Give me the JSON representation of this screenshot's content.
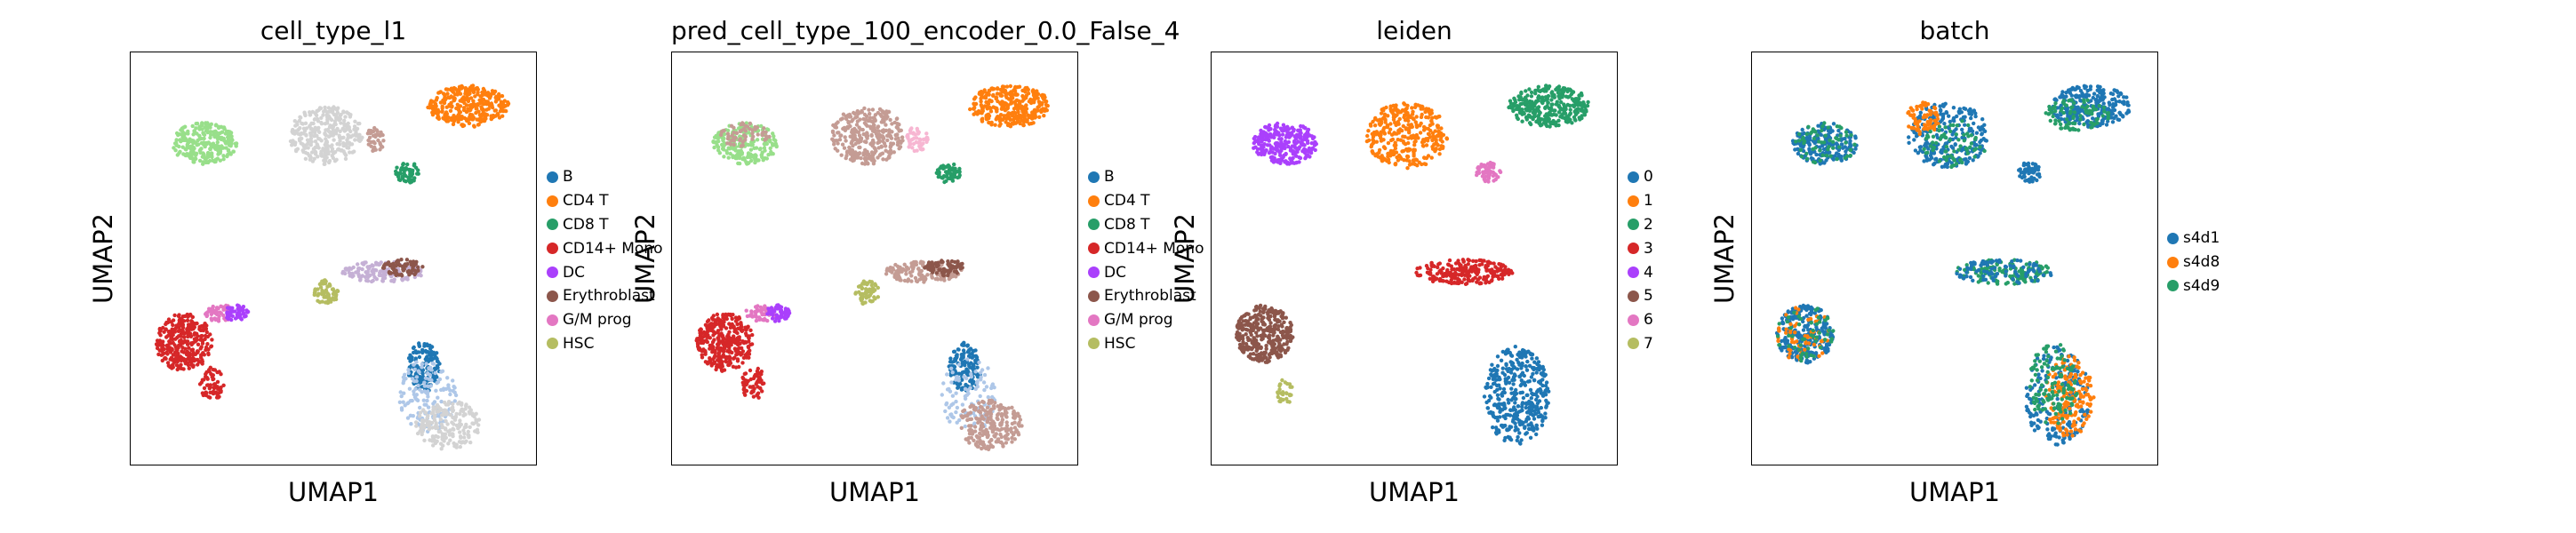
{
  "chart_data": [
    {
      "type": "scatter",
      "title": "cell_type_l1",
      "xlabel": "UMAP1",
      "ylabel": "UMAP2",
      "legend": [
        {
          "name": "B",
          "color": "#1f77b4"
        },
        {
          "name": "CD4 T",
          "color": "#ff7f0e"
        },
        {
          "name": "CD8 T",
          "color": "#279e68"
        },
        {
          "name": "CD14+ Mono",
          "color": "#d62728"
        },
        {
          "name": "DC",
          "color": "#aa40fc"
        },
        {
          "name": "Erythroblast",
          "color": "#8c564b"
        },
        {
          "name": "G/M prog",
          "color": "#e377c2"
        },
        {
          "name": "HSC",
          "color": "#b5bd61"
        }
      ],
      "clusters": [
        {
          "x": 0.18,
          "y": 0.78,
          "rx": 0.08,
          "ry": 0.05,
          "color": "#98df8a",
          "n": 260
        },
        {
          "x": 0.48,
          "y": 0.8,
          "rx": 0.09,
          "ry": 0.07,
          "color": "#d3d3d3",
          "n": 320
        },
        {
          "x": 0.83,
          "y": 0.87,
          "rx": 0.1,
          "ry": 0.05,
          "color": "#ff7f0e",
          "n": 320
        },
        {
          "x": 0.68,
          "y": 0.71,
          "rx": 0.03,
          "ry": 0.025,
          "color": "#279e68",
          "n": 60
        },
        {
          "x": 0.6,
          "y": 0.79,
          "rx": 0.025,
          "ry": 0.03,
          "color": "#c49c94",
          "n": 40
        },
        {
          "x": 0.13,
          "y": 0.3,
          "rx": 0.07,
          "ry": 0.07,
          "color": "#d62728",
          "n": 320
        },
        {
          "x": 0.2,
          "y": 0.2,
          "rx": 0.03,
          "ry": 0.04,
          "color": "#d62728",
          "n": 60
        },
        {
          "x": 0.22,
          "y": 0.37,
          "rx": 0.04,
          "ry": 0.02,
          "color": "#e377c2",
          "n": 50
        },
        {
          "x": 0.26,
          "y": 0.37,
          "rx": 0.03,
          "ry": 0.02,
          "color": "#aa40fc",
          "n": 50
        },
        {
          "x": 0.62,
          "y": 0.47,
          "rx": 0.1,
          "ry": 0.025,
          "color": "#c5b0d5",
          "n": 140
        },
        {
          "x": 0.67,
          "y": 0.48,
          "rx": 0.05,
          "ry": 0.02,
          "color": "#8c564b",
          "n": 70
        },
        {
          "x": 0.48,
          "y": 0.42,
          "rx": 0.03,
          "ry": 0.03,
          "color": "#b5bd61",
          "n": 60
        },
        {
          "x": 0.72,
          "y": 0.24,
          "rx": 0.04,
          "ry": 0.06,
          "color": "#1f77b4",
          "n": 140
        },
        {
          "x": 0.73,
          "y": 0.17,
          "rx": 0.07,
          "ry": 0.09,
          "color": "#aec7e8",
          "n": 140
        },
        {
          "x": 0.78,
          "y": 0.1,
          "rx": 0.08,
          "ry": 0.06,
          "color": "#d3d3d3",
          "n": 200
        }
      ]
    },
    {
      "type": "scatter",
      "title": "pred_cell_type_100_encoder_0.0_False_4",
      "xlabel": "UMAP1",
      "ylabel": "UMAP2",
      "legend": [
        {
          "name": "B",
          "color": "#1f77b4"
        },
        {
          "name": "CD4 T",
          "color": "#ff7f0e"
        },
        {
          "name": "CD8 T",
          "color": "#279e68"
        },
        {
          "name": "CD14+ Mono",
          "color": "#d62728"
        },
        {
          "name": "DC",
          "color": "#aa40fc"
        },
        {
          "name": "Erythroblast",
          "color": "#8c564b"
        },
        {
          "name": "G/M prog",
          "color": "#e377c2"
        },
        {
          "name": "HSC",
          "color": "#b5bd61"
        }
      ],
      "clusters": [
        {
          "x": 0.18,
          "y": 0.78,
          "rx": 0.08,
          "ry": 0.05,
          "color": "#98df8a",
          "n": 220
        },
        {
          "x": 0.18,
          "y": 0.8,
          "rx": 0.06,
          "ry": 0.03,
          "color": "#c49c94",
          "n": 60
        },
        {
          "x": 0.48,
          "y": 0.8,
          "rx": 0.09,
          "ry": 0.07,
          "color": "#c49c94",
          "n": 320
        },
        {
          "x": 0.83,
          "y": 0.87,
          "rx": 0.1,
          "ry": 0.05,
          "color": "#ff7f0e",
          "n": 320
        },
        {
          "x": 0.68,
          "y": 0.71,
          "rx": 0.03,
          "ry": 0.025,
          "color": "#279e68",
          "n": 60
        },
        {
          "x": 0.6,
          "y": 0.79,
          "rx": 0.03,
          "ry": 0.03,
          "color": "#f7b6d2",
          "n": 50
        },
        {
          "x": 0.13,
          "y": 0.3,
          "rx": 0.07,
          "ry": 0.07,
          "color": "#d62728",
          "n": 320
        },
        {
          "x": 0.2,
          "y": 0.2,
          "rx": 0.03,
          "ry": 0.04,
          "color": "#d62728",
          "n": 60
        },
        {
          "x": 0.22,
          "y": 0.37,
          "rx": 0.04,
          "ry": 0.02,
          "color": "#e377c2",
          "n": 50
        },
        {
          "x": 0.26,
          "y": 0.37,
          "rx": 0.03,
          "ry": 0.02,
          "color": "#aa40fc",
          "n": 50
        },
        {
          "x": 0.62,
          "y": 0.47,
          "rx": 0.1,
          "ry": 0.025,
          "color": "#c49c94",
          "n": 140
        },
        {
          "x": 0.67,
          "y": 0.48,
          "rx": 0.05,
          "ry": 0.02,
          "color": "#8c564b",
          "n": 70
        },
        {
          "x": 0.48,
          "y": 0.42,
          "rx": 0.03,
          "ry": 0.03,
          "color": "#b5bd61",
          "n": 60
        },
        {
          "x": 0.72,
          "y": 0.24,
          "rx": 0.04,
          "ry": 0.06,
          "color": "#1f77b4",
          "n": 150
        },
        {
          "x": 0.73,
          "y": 0.17,
          "rx": 0.07,
          "ry": 0.09,
          "color": "#aec7e8",
          "n": 100
        },
        {
          "x": 0.78,
          "y": 0.1,
          "rx": 0.08,
          "ry": 0.06,
          "color": "#c49c94",
          "n": 220
        }
      ]
    },
    {
      "type": "scatter",
      "title": "leiden",
      "xlabel": "UMAP1",
      "ylabel": "UMAP2",
      "legend": [
        {
          "name": "0",
          "color": "#1f77b4"
        },
        {
          "name": "1",
          "color": "#ff7f0e"
        },
        {
          "name": "2",
          "color": "#279e68"
        },
        {
          "name": "3",
          "color": "#d62728"
        },
        {
          "name": "4",
          "color": "#aa40fc"
        },
        {
          "name": "5",
          "color": "#8c564b"
        },
        {
          "name": "6",
          "color": "#e377c2"
        },
        {
          "name": "7",
          "color": "#b5bd61"
        }
      ],
      "clusters": [
        {
          "x": 0.18,
          "y": 0.78,
          "rx": 0.08,
          "ry": 0.05,
          "color": "#aa40fc",
          "n": 280
        },
        {
          "x": 0.48,
          "y": 0.8,
          "rx": 0.1,
          "ry": 0.08,
          "color": "#ff7f0e",
          "n": 340
        },
        {
          "x": 0.83,
          "y": 0.87,
          "rx": 0.1,
          "ry": 0.05,
          "color": "#279e68",
          "n": 320
        },
        {
          "x": 0.68,
          "y": 0.71,
          "rx": 0.03,
          "ry": 0.025,
          "color": "#e377c2",
          "n": 60
        },
        {
          "x": 0.13,
          "y": 0.32,
          "rx": 0.07,
          "ry": 0.07,
          "color": "#8c564b",
          "n": 320
        },
        {
          "x": 0.18,
          "y": 0.18,
          "rx": 0.02,
          "ry": 0.03,
          "color": "#b5bd61",
          "n": 30
        },
        {
          "x": 0.62,
          "y": 0.47,
          "rx": 0.12,
          "ry": 0.03,
          "color": "#d62728",
          "n": 220
        },
        {
          "x": 0.75,
          "y": 0.17,
          "rx": 0.08,
          "ry": 0.12,
          "color": "#1f77b4",
          "n": 380
        }
      ]
    },
    {
      "type": "scatter",
      "title": "batch",
      "xlabel": "UMAP1",
      "ylabel": "UMAP2",
      "legend": [
        {
          "name": "s4d1",
          "color": "#1f77b4"
        },
        {
          "name": "s4d8",
          "color": "#ff7f0e"
        },
        {
          "name": "s4d9",
          "color": "#279e68"
        }
      ],
      "clusters": [
        {
          "x": 0.18,
          "y": 0.78,
          "rx": 0.08,
          "ry": 0.05,
          "color": "#1f77b4",
          "n": 200
        },
        {
          "x": 0.18,
          "y": 0.78,
          "rx": 0.08,
          "ry": 0.05,
          "color": "#279e68",
          "n": 60
        },
        {
          "x": 0.48,
          "y": 0.8,
          "rx": 0.1,
          "ry": 0.08,
          "color": "#1f77b4",
          "n": 260
        },
        {
          "x": 0.42,
          "y": 0.84,
          "rx": 0.04,
          "ry": 0.04,
          "color": "#ff7f0e",
          "n": 80
        },
        {
          "x": 0.5,
          "y": 0.78,
          "rx": 0.08,
          "ry": 0.06,
          "color": "#279e68",
          "n": 70
        },
        {
          "x": 0.83,
          "y": 0.87,
          "rx": 0.1,
          "ry": 0.05,
          "color": "#1f77b4",
          "n": 260
        },
        {
          "x": 0.8,
          "y": 0.85,
          "rx": 0.08,
          "ry": 0.04,
          "color": "#279e68",
          "n": 90
        },
        {
          "x": 0.68,
          "y": 0.71,
          "rx": 0.03,
          "ry": 0.025,
          "color": "#1f77b4",
          "n": 50
        },
        {
          "x": 0.13,
          "y": 0.32,
          "rx": 0.07,
          "ry": 0.07,
          "color": "#1f77b4",
          "n": 250
        },
        {
          "x": 0.13,
          "y": 0.32,
          "rx": 0.07,
          "ry": 0.07,
          "color": "#ff7f0e",
          "n": 60
        },
        {
          "x": 0.13,
          "y": 0.32,
          "rx": 0.07,
          "ry": 0.07,
          "color": "#279e68",
          "n": 50
        },
        {
          "x": 0.62,
          "y": 0.47,
          "rx": 0.12,
          "ry": 0.03,
          "color": "#279e68",
          "n": 140
        },
        {
          "x": 0.62,
          "y": 0.47,
          "rx": 0.12,
          "ry": 0.03,
          "color": "#1f77b4",
          "n": 90
        },
        {
          "x": 0.75,
          "y": 0.17,
          "rx": 0.08,
          "ry": 0.12,
          "color": "#1f77b4",
          "n": 200
        },
        {
          "x": 0.78,
          "y": 0.17,
          "rx": 0.06,
          "ry": 0.1,
          "color": "#ff7f0e",
          "n": 160
        },
        {
          "x": 0.74,
          "y": 0.2,
          "rx": 0.06,
          "ry": 0.1,
          "color": "#279e68",
          "n": 120
        }
      ]
    }
  ]
}
